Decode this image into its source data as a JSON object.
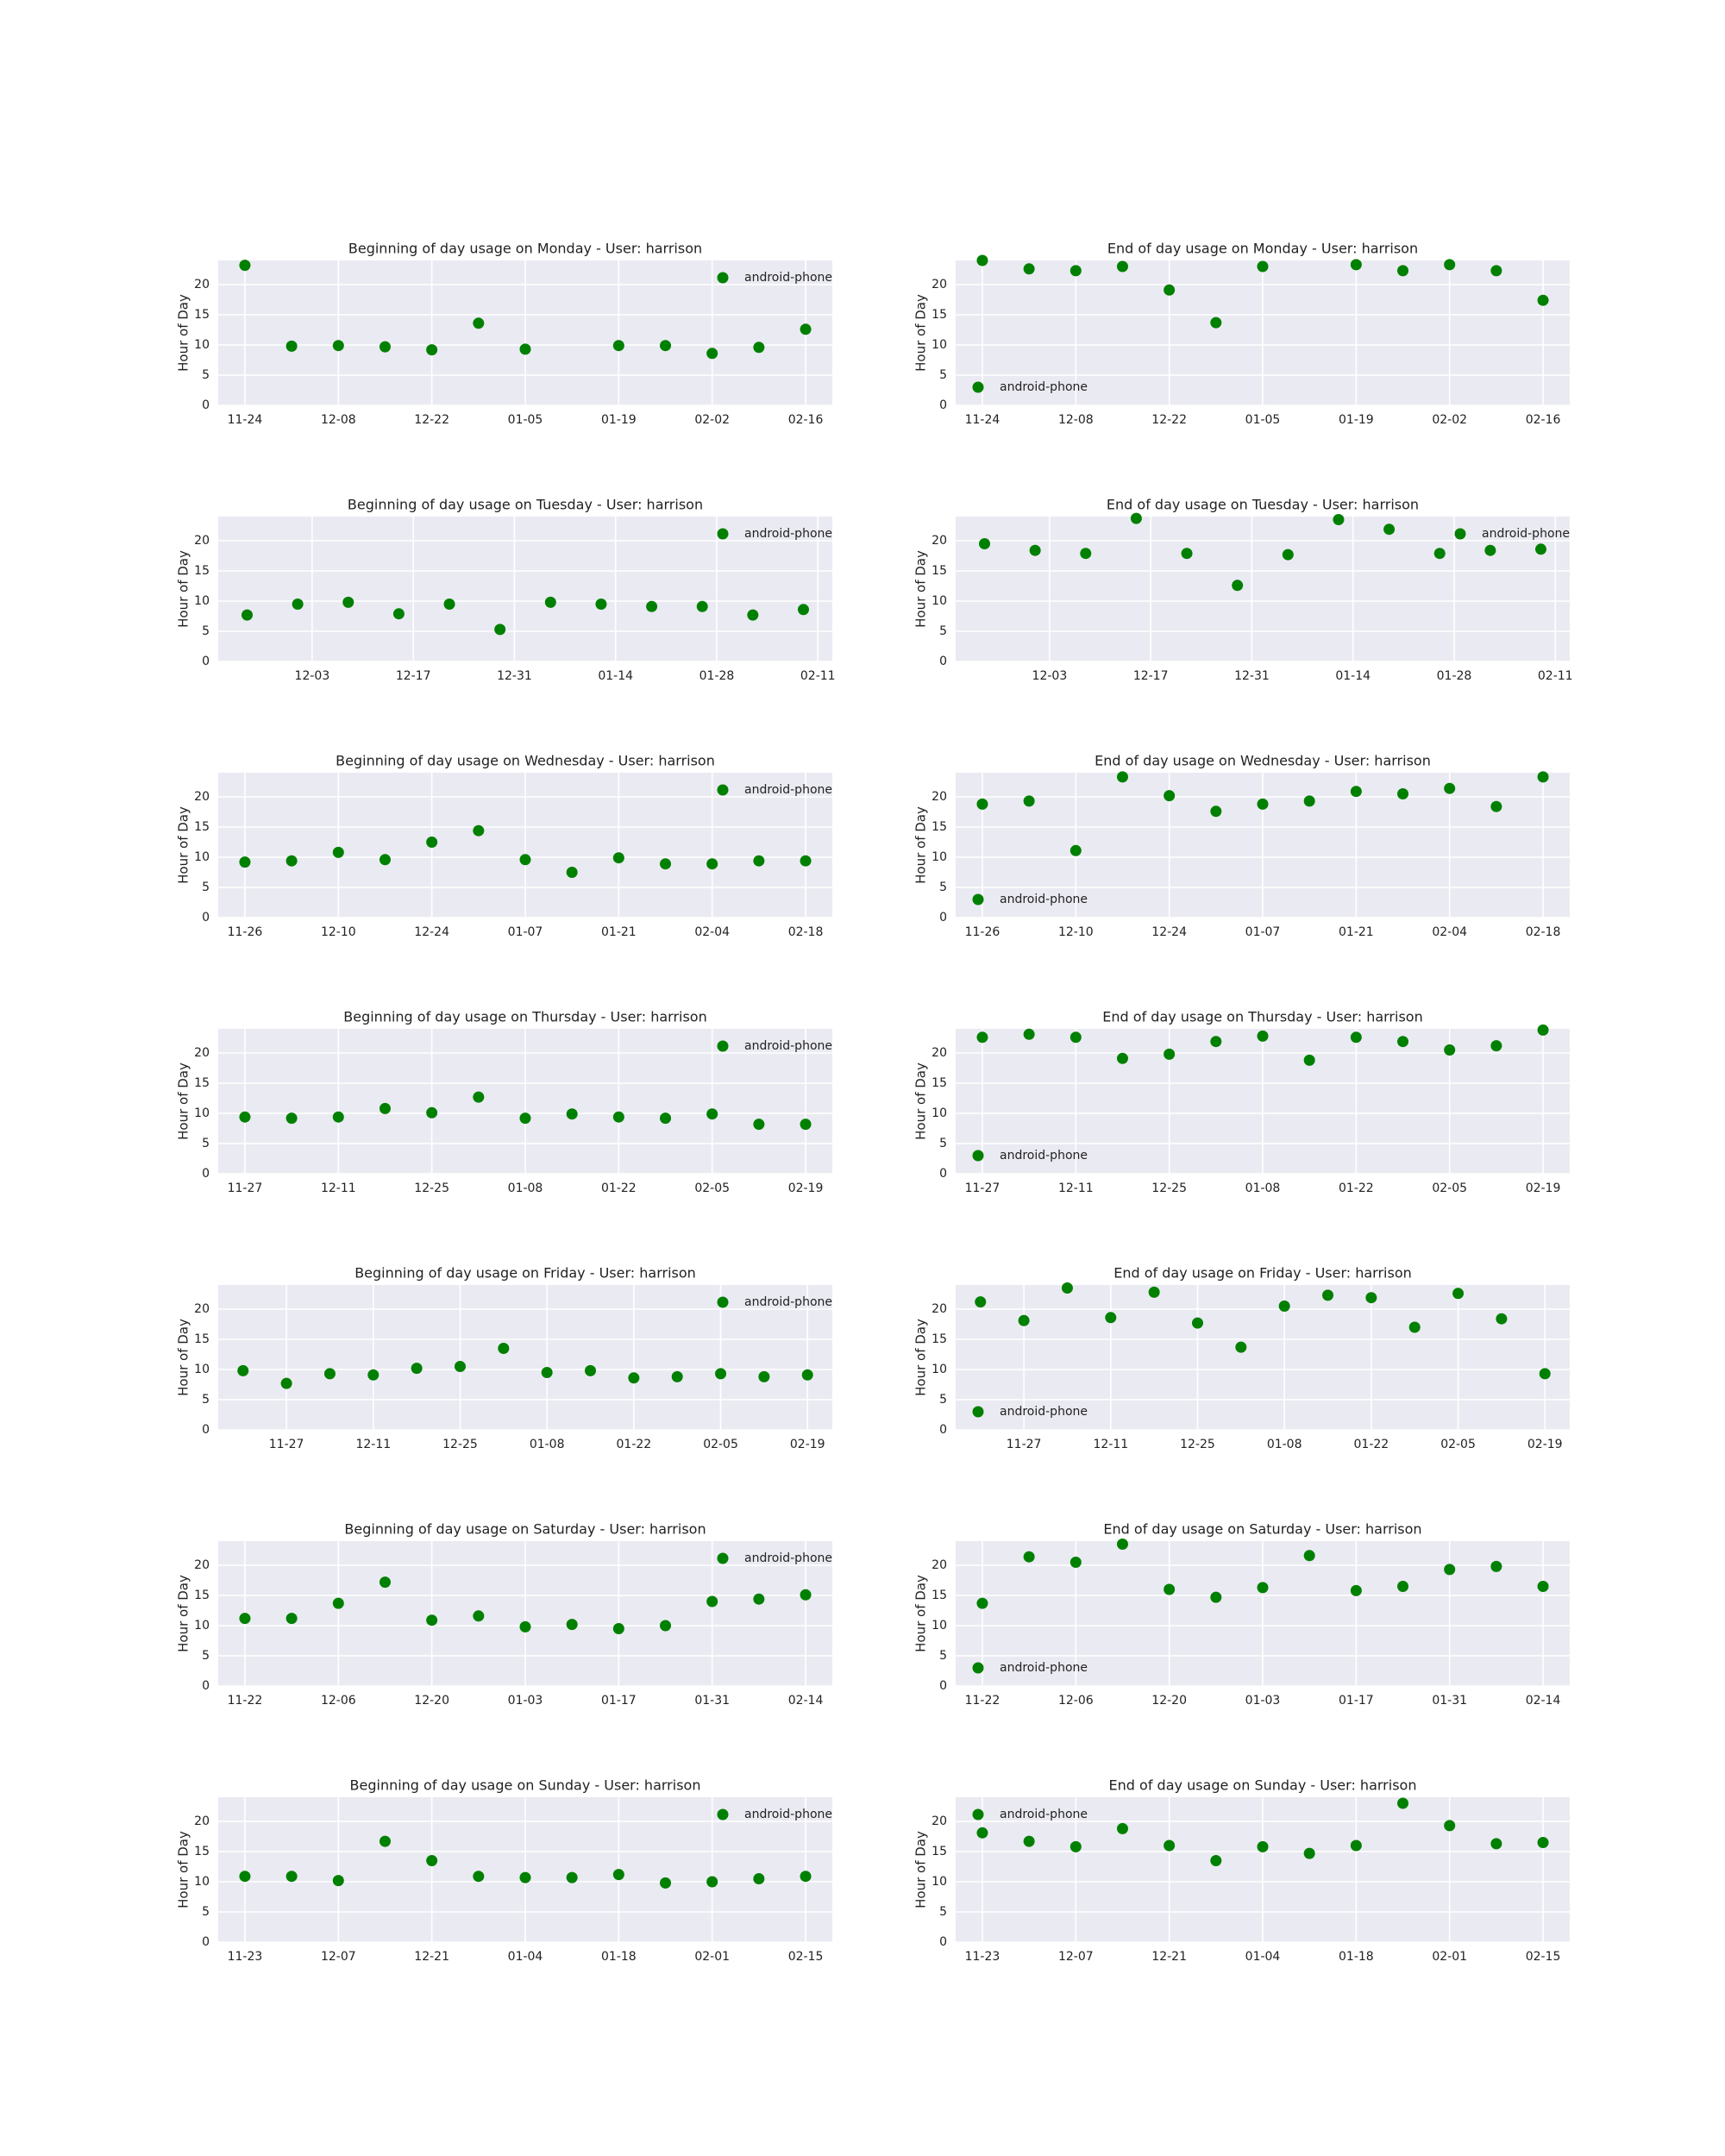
{
  "chart_data": [
    {
      "type": "scatter",
      "title": "Beginning of day usage on Monday - User: harrison",
      "ylabel": "Hour of Day",
      "x": [
        "11-24",
        "12-01",
        "12-08",
        "12-15",
        "12-22",
        "12-29",
        "01-05",
        "01-19",
        "01-26",
        "02-02",
        "02-09",
        "02-16"
      ],
      "series": [
        {
          "name": "android-phone",
          "color": "#008000",
          "values": [
            23.2,
            9.8,
            9.9,
            9.7,
            9.2,
            13.6,
            9.3,
            9.9,
            9.9,
            8.6,
            9.6,
            12.6
          ]
        }
      ],
      "xlim": [
        "11-20",
        "02-20"
      ],
      "xticks": [
        "11-24",
        "12-08",
        "12-22",
        "01-05",
        "01-19",
        "02-02",
        "02-16"
      ],
      "ylim": [
        0,
        24
      ],
      "yticks": [
        0,
        5,
        10,
        15,
        20
      ],
      "legend": "upper right",
      "grid": true
    },
    {
      "type": "scatter",
      "title": "End of day usage on Monday - User: harrison",
      "ylabel": "Hour of Day",
      "x": [
        "11-24",
        "12-01",
        "12-08",
        "12-15",
        "12-22",
        "12-29",
        "01-05",
        "01-19",
        "01-26",
        "02-02",
        "02-09",
        "02-16"
      ],
      "series": [
        {
          "name": "android-phone",
          "color": "#008000",
          "values": [
            24.0,
            22.6,
            22.3,
            23.0,
            19.1,
            13.7,
            23.0,
            23.3,
            22.3,
            23.3,
            22.3,
            17.4
          ]
        }
      ],
      "xlim": [
        "11-20",
        "02-20"
      ],
      "xticks": [
        "11-24",
        "12-08",
        "12-22",
        "01-05",
        "01-19",
        "02-02",
        "02-16"
      ],
      "ylim": [
        0,
        24
      ],
      "yticks": [
        0,
        5,
        10,
        15,
        20
      ],
      "legend": "lower left",
      "grid": true
    },
    {
      "type": "scatter",
      "title": "Beginning of day usage on Tuesday - User: harrison",
      "ylabel": "Hour of Day",
      "x": [
        "11-24",
        "12-01",
        "12-08",
        "12-15",
        "12-22",
        "12-29",
        "01-05",
        "01-12",
        "01-19",
        "01-26",
        "02-02",
        "02-09"
      ],
      "series": [
        {
          "name": "android-phone",
          "color": "#008000",
          "values": [
            7.7,
            9.5,
            9.8,
            7.9,
            9.5,
            5.3,
            9.8,
            9.5,
            9.1,
            9.1,
            7.7,
            8.6
          ]
        }
      ],
      "xlim": [
        "11-20",
        "02-13"
      ],
      "xticks": [
        "12-03",
        "12-17",
        "12-31",
        "01-14",
        "01-28",
        "02-11"
      ],
      "ylim": [
        0,
        24
      ],
      "yticks": [
        0,
        5,
        10,
        15,
        20
      ],
      "legend": "upper right",
      "grid": true
    },
    {
      "type": "scatter",
      "title": "End of day usage on Tuesday - User: harrison",
      "ylabel": "Hour of Day",
      "x": [
        "11-24",
        "12-01",
        "12-08",
        "12-15",
        "12-22",
        "12-29",
        "01-05",
        "01-12",
        "01-19",
        "01-26",
        "02-02",
        "02-09"
      ],
      "series": [
        {
          "name": "android-phone",
          "color": "#008000",
          "values": [
            19.5,
            18.4,
            17.9,
            23.7,
            17.9,
            12.6,
            17.7,
            23.5,
            21.9,
            17.9,
            18.4,
            18.6
          ]
        }
      ],
      "xlim": [
        "11-20",
        "02-13"
      ],
      "xticks": [
        "12-03",
        "12-17",
        "12-31",
        "01-14",
        "01-28",
        "02-11"
      ],
      "ylim": [
        0,
        24
      ],
      "yticks": [
        0,
        5,
        10,
        15,
        20
      ],
      "legend": "upper right",
      "grid": true
    },
    {
      "type": "scatter",
      "title": "Beginning of day usage on Wednesday - User: harrison",
      "ylabel": "Hour of Day",
      "x": [
        "11-26",
        "12-03",
        "12-10",
        "12-17",
        "12-24",
        "12-31",
        "01-07",
        "01-14",
        "01-21",
        "01-28",
        "02-04",
        "02-11",
        "02-18"
      ],
      "series": [
        {
          "name": "android-phone",
          "color": "#008000",
          "values": [
            9.2,
            9.4,
            10.8,
            9.6,
            12.5,
            14.4,
            9.6,
            7.5,
            9.9,
            8.9,
            8.9,
            9.4,
            9.4
          ]
        }
      ],
      "xlim": [
        "11-22",
        "02-22"
      ],
      "xticks": [
        "11-26",
        "12-10",
        "12-24",
        "01-07",
        "01-21",
        "02-04",
        "02-18"
      ],
      "ylim": [
        0,
        24
      ],
      "yticks": [
        0,
        5,
        10,
        15,
        20
      ],
      "legend": "upper right",
      "grid": true
    },
    {
      "type": "scatter",
      "title": "End of day usage on Wednesday - User: harrison",
      "ylabel": "Hour of Day",
      "x": [
        "11-26",
        "12-03",
        "12-10",
        "12-17",
        "12-24",
        "12-31",
        "01-07",
        "01-14",
        "01-21",
        "01-28",
        "02-04",
        "02-11",
        "02-18"
      ],
      "series": [
        {
          "name": "android-phone",
          "color": "#008000",
          "values": [
            18.8,
            19.3,
            11.1,
            23.3,
            20.2,
            17.6,
            18.8,
            19.3,
            20.9,
            20.5,
            21.4,
            18.4,
            23.3
          ]
        }
      ],
      "xlim": [
        "11-22",
        "02-22"
      ],
      "xticks": [
        "11-26",
        "12-10",
        "12-24",
        "01-07",
        "01-21",
        "02-04",
        "02-18"
      ],
      "ylim": [
        0,
        24
      ],
      "yticks": [
        0,
        5,
        10,
        15,
        20
      ],
      "legend": "lower left",
      "grid": true
    },
    {
      "type": "scatter",
      "title": "Beginning of day usage on Thursday - User: harrison",
      "ylabel": "Hour of Day",
      "x": [
        "11-27",
        "12-04",
        "12-11",
        "12-18",
        "12-25",
        "01-01",
        "01-08",
        "01-15",
        "01-22",
        "01-29",
        "02-05",
        "02-12",
        "02-19"
      ],
      "series": [
        {
          "name": "android-phone",
          "color": "#008000",
          "values": [
            9.4,
            9.2,
            9.4,
            10.8,
            10.1,
            12.7,
            9.2,
            9.9,
            9.4,
            9.2,
            9.9,
            8.2,
            8.2
          ]
        }
      ],
      "xlim": [
        "11-23",
        "02-23"
      ],
      "xticks": [
        "11-27",
        "12-11",
        "12-25",
        "01-08",
        "01-22",
        "02-05",
        "02-19"
      ],
      "ylim": [
        0,
        24
      ],
      "yticks": [
        0,
        5,
        10,
        15,
        20
      ],
      "legend": "upper right",
      "grid": true
    },
    {
      "type": "scatter",
      "title": "End of day usage on Thursday - User: harrison",
      "ylabel": "Hour of Day",
      "x": [
        "11-27",
        "12-04",
        "12-11",
        "12-18",
        "12-25",
        "01-01",
        "01-08",
        "01-15",
        "01-22",
        "01-29",
        "02-05",
        "02-12",
        "02-19"
      ],
      "series": [
        {
          "name": "android-phone",
          "color": "#008000",
          "values": [
            22.6,
            23.1,
            22.6,
            19.1,
            19.8,
            21.9,
            22.8,
            18.8,
            22.6,
            21.9,
            20.5,
            21.2,
            23.8
          ]
        }
      ],
      "xlim": [
        "11-23",
        "02-23"
      ],
      "xticks": [
        "11-27",
        "12-11",
        "12-25",
        "01-08",
        "01-22",
        "02-05",
        "02-19"
      ],
      "ylim": [
        0,
        24
      ],
      "yticks": [
        0,
        5,
        10,
        15,
        20
      ],
      "legend": "lower left",
      "grid": true
    },
    {
      "type": "scatter",
      "title": "Beginning of day usage on Friday - User: harrison",
      "ylabel": "Hour of Day",
      "x": [
        "11-20",
        "11-27",
        "12-04",
        "12-11",
        "12-18",
        "12-25",
        "01-01",
        "01-08",
        "01-15",
        "01-22",
        "01-29",
        "02-05",
        "02-12",
        "02-19"
      ],
      "series": [
        {
          "name": "android-phone",
          "color": "#008000",
          "values": [
            9.8,
            7.7,
            9.3,
            9.1,
            10.2,
            10.5,
            13.5,
            9.5,
            9.8,
            8.6,
            8.8,
            9.3,
            8.8,
            9.1
          ]
        }
      ],
      "xlim": [
        "11-16",
        "02-23"
      ],
      "xticks": [
        "11-27",
        "12-11",
        "12-25",
        "01-08",
        "01-22",
        "02-05",
        "02-19"
      ],
      "ylim": [
        0,
        24
      ],
      "yticks": [
        0,
        5,
        10,
        15,
        20
      ],
      "legend": "upper right",
      "grid": true
    },
    {
      "type": "scatter",
      "title": "End of day usage on Friday - User: harrison",
      "ylabel": "Hour of Day",
      "x": [
        "11-20",
        "11-27",
        "12-04",
        "12-11",
        "12-18",
        "12-25",
        "01-01",
        "01-08",
        "01-15",
        "01-22",
        "01-29",
        "02-05",
        "02-12",
        "02-19"
      ],
      "series": [
        {
          "name": "android-phone",
          "color": "#008000",
          "values": [
            21.2,
            18.1,
            23.5,
            18.6,
            22.8,
            17.7,
            13.7,
            20.5,
            22.3,
            21.9,
            17.0,
            22.6,
            18.4,
            9.3
          ]
        }
      ],
      "xlim": [
        "11-16",
        "02-23"
      ],
      "xticks": [
        "11-27",
        "12-11",
        "12-25",
        "01-08",
        "01-22",
        "02-05",
        "02-19"
      ],
      "ylim": [
        0,
        24
      ],
      "yticks": [
        0,
        5,
        10,
        15,
        20
      ],
      "legend": "lower left",
      "grid": true
    },
    {
      "type": "scatter",
      "title": "Beginning of day usage on Saturday - User: harrison",
      "ylabel": "Hour of Day",
      "x": [
        "11-22",
        "11-29",
        "12-06",
        "12-13",
        "12-20",
        "12-27",
        "01-03",
        "01-10",
        "01-17",
        "01-24",
        "01-31",
        "02-07",
        "02-14"
      ],
      "series": [
        {
          "name": "android-phone",
          "color": "#008000",
          "values": [
            11.2,
            11.2,
            13.7,
            17.2,
            10.9,
            11.6,
            9.8,
            10.2,
            9.5,
            10.0,
            14.0,
            14.4,
            15.1
          ]
        }
      ],
      "xlim": [
        "11-18",
        "02-18"
      ],
      "xticks": [
        "11-22",
        "12-06",
        "12-20",
        "01-03",
        "01-17",
        "01-31",
        "02-14"
      ],
      "ylim": [
        0,
        24
      ],
      "yticks": [
        0,
        5,
        10,
        15,
        20
      ],
      "legend": "upper right",
      "grid": true
    },
    {
      "type": "scatter",
      "title": "End of day usage on Saturday - User: harrison",
      "ylabel": "Hour of Day",
      "x": [
        "11-22",
        "11-29",
        "12-06",
        "12-13",
        "12-20",
        "12-27",
        "01-03",
        "01-10",
        "01-17",
        "01-24",
        "01-31",
        "02-07",
        "02-14"
      ],
      "series": [
        {
          "name": "android-phone",
          "color": "#008000",
          "values": [
            13.7,
            21.4,
            20.5,
            23.5,
            16.0,
            14.7,
            16.3,
            21.6,
            15.8,
            16.5,
            19.3,
            19.8,
            16.5
          ]
        }
      ],
      "xlim": [
        "11-18",
        "02-18"
      ],
      "xticks": [
        "11-22",
        "12-06",
        "12-20",
        "01-03",
        "01-17",
        "01-31",
        "02-14"
      ],
      "ylim": [
        0,
        24
      ],
      "yticks": [
        0,
        5,
        10,
        15,
        20
      ],
      "legend": "lower left",
      "grid": true
    },
    {
      "type": "scatter",
      "title": "Beginning of day usage on Sunday - User: harrison",
      "ylabel": "Hour of Day",
      "x": [
        "11-23",
        "11-30",
        "12-07",
        "12-14",
        "12-21",
        "12-28",
        "01-04",
        "01-11",
        "01-18",
        "01-25",
        "02-01",
        "02-08",
        "02-15"
      ],
      "series": [
        {
          "name": "android-phone",
          "color": "#008000",
          "values": [
            10.9,
            10.9,
            10.2,
            16.7,
            13.5,
            10.9,
            10.7,
            10.7,
            11.2,
            9.8,
            10.0,
            10.5,
            10.9
          ]
        }
      ],
      "xlim": [
        "11-19",
        "02-19"
      ],
      "xticks": [
        "11-23",
        "12-07",
        "12-21",
        "01-04",
        "01-18",
        "02-01",
        "02-15"
      ],
      "ylim": [
        0,
        24
      ],
      "yticks": [
        0,
        5,
        10,
        15,
        20
      ],
      "legend": "upper right",
      "grid": true
    },
    {
      "type": "scatter",
      "title": "End of day usage on Sunday - User: harrison",
      "ylabel": "Hour of Day",
      "x": [
        "11-23",
        "11-30",
        "12-07",
        "12-14",
        "12-21",
        "12-28",
        "01-04",
        "01-11",
        "01-18",
        "01-25",
        "02-01",
        "02-08",
        "02-15"
      ],
      "series": [
        {
          "name": "android-phone",
          "color": "#008000",
          "values": [
            18.1,
            16.7,
            15.8,
            18.8,
            16.0,
            13.5,
            15.8,
            14.7,
            16.0,
            23.0,
            19.3,
            16.3,
            16.5
          ]
        }
      ],
      "xlim": [
        "11-19",
        "02-19"
      ],
      "xticks": [
        "11-23",
        "12-07",
        "12-21",
        "01-04",
        "01-18",
        "02-01",
        "02-15"
      ],
      "ylim": [
        0,
        24
      ],
      "yticks": [
        0,
        5,
        10,
        15,
        20
      ],
      "legend": "upper left",
      "grid": true
    }
  ]
}
